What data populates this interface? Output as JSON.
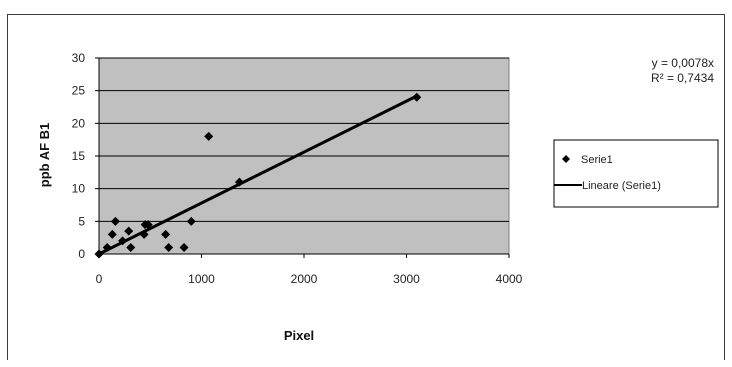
{
  "chart_data": {
    "type": "scatter",
    "xlabel": "Pixel",
    "ylabel": "ppb AF B1",
    "xlim": [
      0,
      4000
    ],
    "ylim": [
      0,
      30
    ],
    "xticks": [
      0,
      1000,
      2000,
      3000,
      4000
    ],
    "yticks": [
      0,
      5,
      10,
      15,
      20,
      25,
      30
    ],
    "grid": true,
    "legend_position": "right",
    "series": [
      {
        "name": "Serie1",
        "marker": "diamond",
        "points": [
          {
            "x": 0,
            "y": 0
          },
          {
            "x": 80,
            "y": 1
          },
          {
            "x": 130,
            "y": 3
          },
          {
            "x": 160,
            "y": 5
          },
          {
            "x": 230,
            "y": 2
          },
          {
            "x": 290,
            "y": 3.5
          },
          {
            "x": 310,
            "y": 1
          },
          {
            "x": 440,
            "y": 3
          },
          {
            "x": 450,
            "y": 4.5
          },
          {
            "x": 480,
            "y": 4.5
          },
          {
            "x": 650,
            "y": 3
          },
          {
            "x": 680,
            "y": 1
          },
          {
            "x": 830,
            "y": 1
          },
          {
            "x": 900,
            "y": 5
          },
          {
            "x": 1070,
            "y": 18
          },
          {
            "x": 1370,
            "y": 11
          },
          {
            "x": 3100,
            "y": 24
          }
        ]
      },
      {
        "name": "Lineare (Serie1)",
        "type": "trendline",
        "slope": 0.0078,
        "x_range": [
          0,
          3100
        ]
      }
    ],
    "annotations": [
      "y = 0,0078x",
      "R² = 0,7434"
    ],
    "colors": {
      "plot_area": "#c0c0c0",
      "marker": "#000000",
      "trendline": "#000000",
      "grid": "#000000"
    }
  }
}
